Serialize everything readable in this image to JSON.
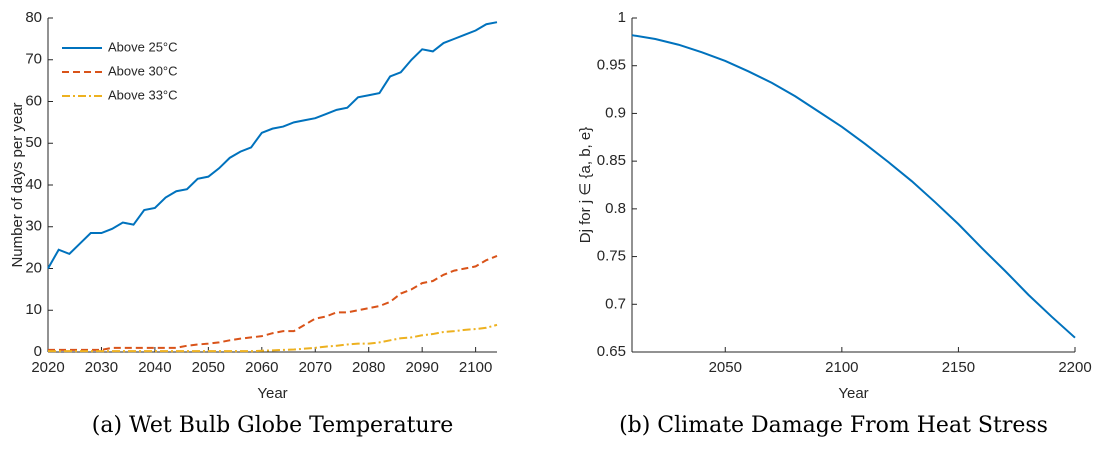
{
  "chart_data": [
    {
      "type": "line",
      "xlabel": "Year",
      "ylabel": "Number of days per year",
      "caption": "(a) Wet Bulb Globe Temperature",
      "x": [
        2020,
        2022,
        2024,
        2026,
        2028,
        2030,
        2032,
        2034,
        2036,
        2038,
        2040,
        2042,
        2044,
        2046,
        2048,
        2050,
        2052,
        2054,
        2056,
        2058,
        2060,
        2062,
        2064,
        2066,
        2068,
        2070,
        2072,
        2074,
        2076,
        2078,
        2080,
        2082,
        2084,
        2086,
        2088,
        2090,
        2092,
        2094,
        2096,
        2098,
        2100,
        2102,
        2104
      ],
      "series": [
        {
          "name": "Above 25°C",
          "color": "#0072bd",
          "style": "solid",
          "values": [
            20,
            24.5,
            23.5,
            26,
            28.5,
            28.5,
            29.5,
            31,
            30.5,
            34,
            34.5,
            37,
            38.5,
            39,
            41.5,
            42,
            44,
            46.5,
            48,
            49,
            52.5,
            53.5,
            54,
            55,
            55.5,
            56,
            57,
            58,
            58.5,
            61,
            61.5,
            62,
            66,
            67,
            70,
            72.5,
            72,
            74,
            75,
            76,
            77,
            78.5,
            79
          ]
        },
        {
          "name": "Above 30°C",
          "color": "#d95319",
          "style": "dashed",
          "values": [
            0.5,
            0.5,
            0.5,
            0.5,
            0.5,
            0.5,
            1,
            1,
            1,
            1,
            1,
            1,
            1,
            1.5,
            1.8,
            2,
            2.3,
            2.8,
            3.2,
            3.5,
            3.8,
            4.5,
            5,
            5,
            6.5,
            8,
            8.5,
            9.5,
            9.5,
            10,
            10.5,
            11,
            12,
            14,
            15,
            16.5,
            17,
            18.5,
            19.5,
            20,
            20.5,
            22,
            23
          ]
        },
        {
          "name": "Above 33°C",
          "color": "#edb120",
          "style": "dashdot",
          "values": [
            0.2,
            0.2,
            0.2,
            0.2,
            0.2,
            0.2,
            0.2,
            0.2,
            0.2,
            0.2,
            0.2,
            0.2,
            0.2,
            0.2,
            0.2,
            0.2,
            0.2,
            0.2,
            0.2,
            0.2,
            0.3,
            0.4,
            0.5,
            0.6,
            0.8,
            1,
            1.3,
            1.5,
            1.8,
            2,
            2,
            2.3,
            2.8,
            3.3,
            3.5,
            4,
            4.3,
            4.8,
            5,
            5.3,
            5.5,
            5.8,
            6.5
          ]
        }
      ],
      "xlim": [
        2020,
        2104
      ],
      "xticks": [
        2020,
        2030,
        2040,
        2050,
        2060,
        2070,
        2080,
        2090,
        2100
      ],
      "ylim": [
        0,
        80
      ],
      "yticks": [
        0,
        10,
        20,
        30,
        40,
        50,
        60,
        70,
        80
      ],
      "legend": "upper left"
    },
    {
      "type": "line",
      "xlabel": "Year",
      "ylabel": "Dj for j ∈ {a, b, e}",
      "caption": "(b) Climate Damage From Heat Stress",
      "x": [
        2010,
        2020,
        2030,
        2040,
        2050,
        2060,
        2070,
        2080,
        2090,
        2100,
        2110,
        2120,
        2130,
        2140,
        2150,
        2160,
        2170,
        2180,
        2190,
        2200
      ],
      "series": [
        {
          "color": "#0072bd",
          "style": "solid",
          "values": [
            0.982,
            0.978,
            0.972,
            0.964,
            0.955,
            0.944,
            0.932,
            0.918,
            0.902,
            0.886,
            0.868,
            0.849,
            0.829,
            0.807,
            0.784,
            0.759,
            0.735,
            0.71,
            0.687,
            0.665
          ]
        }
      ],
      "xlim": [
        2010,
        2200
      ],
      "xticks": [
        2050,
        2100,
        2150,
        2200
      ],
      "ylim": [
        0.65,
        1
      ],
      "yticks": [
        0.65,
        0.7,
        0.75,
        0.8,
        0.85,
        0.9,
        0.95,
        1
      ]
    }
  ]
}
